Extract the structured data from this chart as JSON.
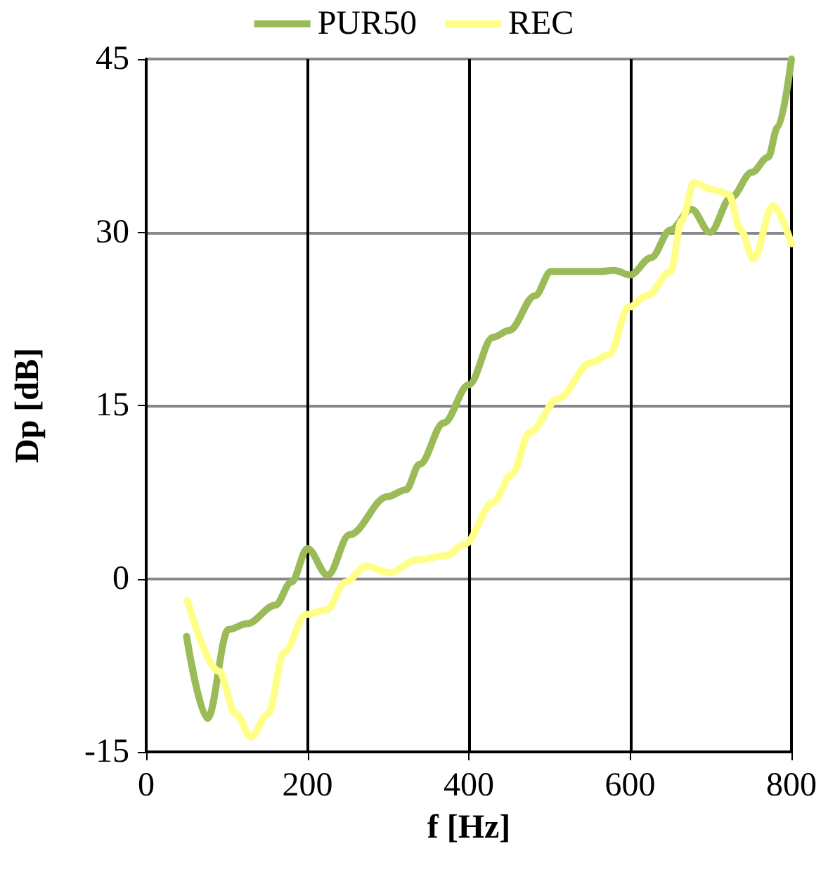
{
  "chart_data": {
    "type": "line",
    "xlabel": "f [Hz]",
    "ylabel": "Dp [dB]",
    "xlim": [
      0,
      800
    ],
    "xticks": [
      0,
      200,
      400,
      600,
      800
    ],
    "ylim": [
      -15,
      45
    ],
    "yticks": [
      -15,
      0,
      15,
      30,
      45
    ],
    "grid": true,
    "legend": "top",
    "marker": "none",
    "line_style": "solid",
    "series": [
      {
        "name": "PUR50",
        "color": "#9bbb59",
        "x": [
          50,
          76,
          102,
          125,
          160,
          180,
          200,
          225,
          252,
          299,
          322,
          339,
          369,
          400,
          430,
          450,
          482,
          502,
          563,
          580,
          600,
          626,
          650,
          676,
          699,
          725,
          751,
          771,
          783,
          800
        ],
        "values": [
          -5,
          -12.1,
          -4.4,
          -3.9,
          -2.3,
          -0.3,
          2.6,
          0.3,
          3.8,
          7.1,
          7.7,
          9.9,
          13.5,
          16.8,
          20.9,
          21.5,
          24.5,
          26.6,
          26.6,
          26.7,
          26.3,
          27.8,
          30.2,
          32,
          30,
          33,
          35.2,
          36.5,
          39.1,
          45
        ]
      },
      {
        "name": "REC",
        "color": "#ffff88",
        "x": [
          51,
          90,
          111,
          130,
          151,
          171,
          198,
          224,
          247,
          273,
          302,
          334,
          372,
          395,
          430,
          453,
          476,
          511,
          551,
          574,
          598,
          621,
          650,
          664,
          679,
          702,
          722,
          737,
          753,
          777,
          800
        ],
        "values": [
          -1.9,
          -8,
          -11.7,
          -13.7,
          -11.7,
          -6.4,
          -3.1,
          -2.7,
          -0.3,
          1.1,
          0.5,
          1.6,
          2,
          3,
          6.6,
          9,
          12.7,
          15.6,
          18.7,
          19.4,
          23.5,
          24.5,
          26.6,
          31,
          34.3,
          33.7,
          33.3,
          30.2,
          27.7,
          32.3,
          29
        ]
      }
    ]
  }
}
